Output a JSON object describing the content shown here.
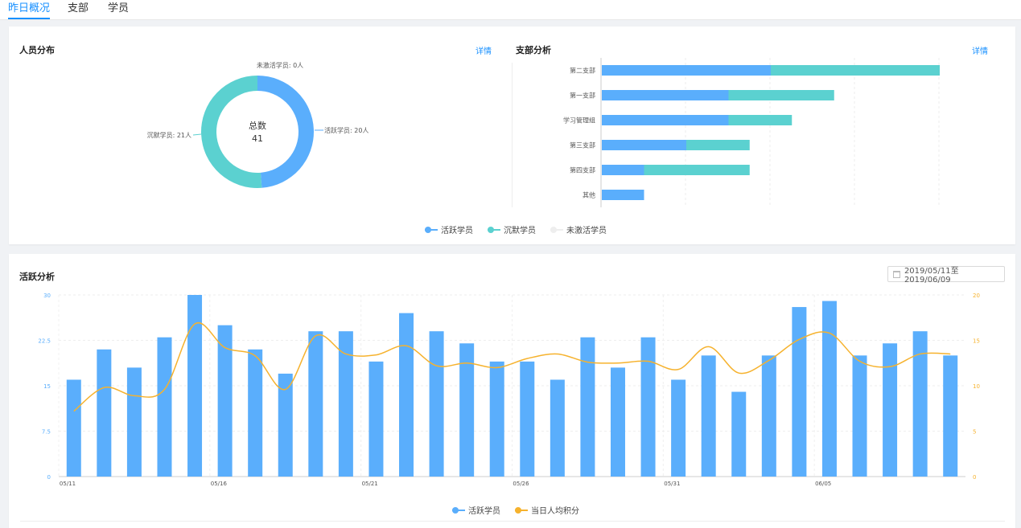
{
  "tabs": [
    "昨日概况",
    "支部",
    "学员"
  ],
  "colors": {
    "active": "#5aaefc",
    "silent": "#5bd1d0",
    "inactive": "#eeeeee",
    "points": "#f6b22d",
    "link": "#1890ff"
  },
  "people": {
    "title": "人员分布",
    "detail": "详情",
    "center_label": "总数",
    "center_value": "41",
    "labels": {
      "inactive": "未激活学员: 0人",
      "silent": "沉默学员: 21人",
      "active": "活跃学员: 20人"
    }
  },
  "branch": {
    "title": "支部分析",
    "detail": "详情"
  },
  "legend_top": [
    "活跃学员",
    "沉默学员",
    "未激活学员"
  ],
  "activity": {
    "title": "活跃分析",
    "date_range": "2019/05/11至2019/06/09",
    "legend": [
      "活跃学员",
      "当日人均积分"
    ]
  },
  "chart_data": [
    {
      "type": "pie",
      "categories": [
        "活跃学员",
        "沉默学员",
        "未激活学员"
      ],
      "values": [
        20,
        21,
        0
      ]
    },
    {
      "type": "bar",
      "orientation": "horizontal",
      "stacked": true,
      "categories": [
        "第二支部",
        "第一支部",
        "学习管理组",
        "第三支部",
        "第四支部",
        "其他"
      ],
      "series": [
        {
          "name": "活跃学员",
          "values": [
            8,
            6,
            6,
            4,
            2,
            2
          ]
        },
        {
          "name": "沉默学员",
          "values": [
            8,
            5,
            3,
            3,
            5,
            0
          ]
        },
        {
          "name": "未激活学员",
          "values": [
            0,
            0,
            0,
            0,
            0,
            0
          ]
        }
      ],
      "xlim": [
        0,
        16
      ],
      "grid": true
    },
    {
      "type": "bar",
      "x": [
        "05/11",
        "05/12",
        "05/13",
        "05/14",
        "05/15",
        "05/16",
        "05/17",
        "05/18",
        "05/19",
        "05/20",
        "05/21",
        "05/22",
        "05/23",
        "05/24",
        "05/25",
        "05/26",
        "05/27",
        "05/28",
        "05/29",
        "05/30",
        "05/31",
        "06/01",
        "06/02",
        "06/03",
        "06/04",
        "06/05",
        "06/06",
        "06/07",
        "06/08",
        "06/09"
      ],
      "x_tick_labels": [
        "05/11",
        "05/16",
        "05/21",
        "05/26",
        "05/31",
        "06/05"
      ],
      "series": [
        {
          "name": "活跃学员",
          "type": "bar",
          "axis": "left",
          "values": [
            16,
            21,
            18,
            23,
            30,
            25,
            21,
            17,
            24,
            24,
            19,
            27,
            24,
            22,
            19,
            19,
            16,
            23,
            18,
            23,
            16,
            20,
            14,
            20,
            28,
            29,
            20,
            22,
            24,
            20
          ]
        },
        {
          "name": "当日人均积分",
          "type": "line",
          "axis": "right",
          "smooth": true,
          "values": [
            7.2,
            9.8,
            8.9,
            9.6,
            16.8,
            14.2,
            13.3,
            9.6,
            15.5,
            13.5,
            13.4,
            14.4,
            12.2,
            12.5,
            12.0,
            13.0,
            13.5,
            12.6,
            12.5,
            12.7,
            11.8,
            14.3,
            11.4,
            12.8,
            15.1,
            15.8,
            12.7,
            12.1,
            13.5,
            13.5
          ]
        }
      ],
      "ylim_left": [
        0,
        30
      ],
      "yticks_left": [
        "0",
        "7.5",
        "15",
        "22.5",
        "30"
      ],
      "ylim_right": [
        0,
        20
      ],
      "yticks_right": [
        "0",
        "5",
        "10",
        "15",
        "20"
      ],
      "grid": true,
      "legend": "bottom-center"
    }
  ]
}
